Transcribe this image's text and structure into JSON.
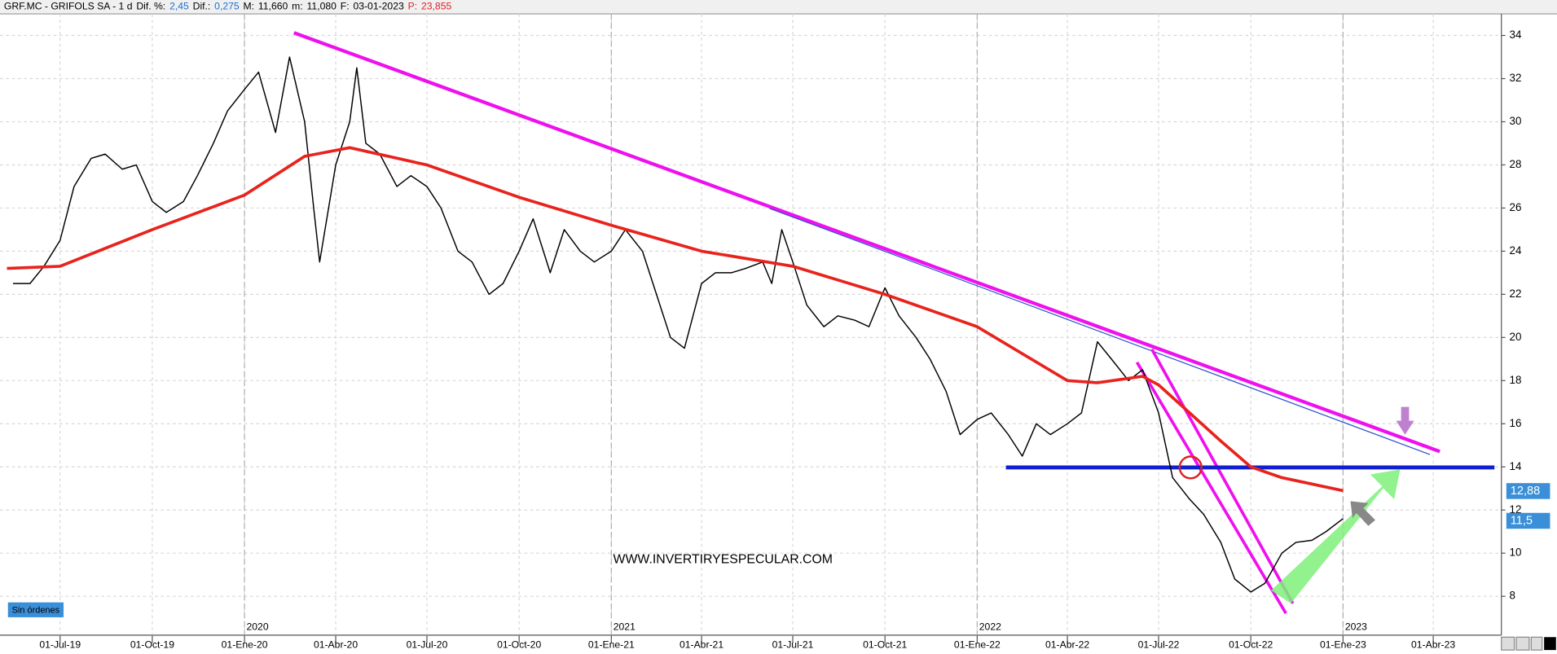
{
  "header": [
    {
      "text": "GRF.MC - GRIFOLS SA -  1 d",
      "color": "#000000"
    },
    {
      "text": "Dif. %:",
      "color": "#000000"
    },
    {
      "text": "2,45",
      "color": "#1f6fd0"
    },
    {
      "text": "Dif.:",
      "color": "#000000"
    },
    {
      "text": "0,275",
      "color": "#1f6fd0"
    },
    {
      "text": "M:",
      "color": "#000000"
    },
    {
      "text": "11,660",
      "color": "#000000"
    },
    {
      "text": "m:",
      "color": "#000000"
    },
    {
      "text": "11,080",
      "color": "#000000"
    },
    {
      "text": "F:",
      "color": "#000000"
    },
    {
      "text": "03-01-2023",
      "color": "#000000"
    },
    {
      "text": "P:",
      "color": "#e0202a"
    },
    {
      "text": "23,855",
      "color": "#e0202a"
    }
  ],
  "watermark": "WWW.INVERTIRYESPECULAR.COM",
  "status": "Sin órdenes",
  "chart_data": {
    "type": "line",
    "xlim": [
      "2019-05-09",
      "2023-06-08"
    ],
    "ylim": [
      6.2,
      35
    ],
    "yticks": [
      8,
      10,
      12,
      14,
      16,
      18,
      20,
      22,
      24,
      26,
      28,
      30,
      32,
      34
    ],
    "xticks": [
      {
        "value": "2019-07-01",
        "label": "01-Jul-19"
      },
      {
        "value": "2019-10-01",
        "label": "01-Oct-19"
      },
      {
        "value": "2020-01-01",
        "label": "01-Ene-20"
      },
      {
        "value": "2020-04-01",
        "label": "01-Abr-20"
      },
      {
        "value": "2020-07-01",
        "label": "01-Jul-20"
      },
      {
        "value": "2020-10-01",
        "label": "01-Oct-20"
      },
      {
        "value": "2021-01-01",
        "label": "01-Ene-21"
      },
      {
        "value": "2021-04-01",
        "label": "01-Abr-21"
      },
      {
        "value": "2021-07-01",
        "label": "01-Jul-21"
      },
      {
        "value": "2021-10-01",
        "label": "01-Oct-21"
      },
      {
        "value": "2022-01-01",
        "label": "01-Ene-22"
      },
      {
        "value": "2022-04-01",
        "label": "01-Abr-22"
      },
      {
        "value": "2022-07-01",
        "label": "01-Jul-22"
      },
      {
        "value": "2022-10-01",
        "label": "01-Oct-22"
      },
      {
        "value": "2023-01-01",
        "label": "01-Ene-23"
      },
      {
        "value": "2023-04-01",
        "label": "01-Abr-23"
      }
    ],
    "year_markers": [
      {
        "value": "2020-01-01",
        "label": "2020"
      },
      {
        "value": "2021-01-01",
        "label": "2021"
      },
      {
        "value": "2022-01-01",
        "label": "2022"
      },
      {
        "value": "2023-01-01",
        "label": "2023"
      }
    ],
    "grid": true,
    "price_labels": [
      {
        "value": 12.88,
        "label": "12,88",
        "color": "#3a8fd8"
      },
      {
        "value": 11.5,
        "label": "11,5",
        "color": "#3a8fd8"
      }
    ],
    "series": [
      {
        "color": "#000000",
        "x": [
          "2019-05-15",
          "2019-06-01",
          "2019-06-15",
          "2019-07-01",
          "2019-07-15",
          "2019-08-01",
          "2019-08-15",
          "2019-09-01",
          "2019-09-15",
          "2019-10-01",
          "2019-10-15",
          "2019-11-01",
          "2019-11-15",
          "2019-12-01",
          "2019-12-15",
          "2020-01-01",
          "2020-01-15",
          "2020-02-01",
          "2020-02-15",
          "2020-03-01",
          "2020-03-10",
          "2020-03-16",
          "2020-04-01",
          "2020-04-15",
          "2020-04-22",
          "2020-05-01",
          "2020-05-15",
          "2020-06-01",
          "2020-06-15",
          "2020-07-01",
          "2020-07-15",
          "2020-08-01",
          "2020-08-15",
          "2020-09-01",
          "2020-09-15",
          "2020-10-01",
          "2020-10-15",
          "2020-11-01",
          "2020-11-15",
          "2020-12-01",
          "2020-12-15",
          "2021-01-01",
          "2021-01-15",
          "2021-02-01",
          "2021-02-15",
          "2021-03-01",
          "2021-03-15",
          "2021-04-01",
          "2021-04-15",
          "2021-05-01",
          "2021-05-15",
          "2021-06-01",
          "2021-06-10",
          "2021-06-20",
          "2021-07-01",
          "2021-07-15",
          "2021-08-01",
          "2021-08-15",
          "2021-09-01",
          "2021-09-15",
          "2021-10-01",
          "2021-10-15",
          "2021-11-01",
          "2021-11-15",
          "2021-12-01",
          "2021-12-15",
          "2022-01-01",
          "2022-01-15",
          "2022-02-01",
          "2022-02-15",
          "2022-03-01",
          "2022-03-15",
          "2022-04-01",
          "2022-04-15",
          "2022-05-01",
          "2022-05-15",
          "2022-06-01",
          "2022-06-15",
          "2022-07-01",
          "2022-07-15",
          "2022-08-01",
          "2022-08-15",
          "2022-09-01",
          "2022-09-15",
          "2022-10-01",
          "2022-10-15",
          "2022-11-01",
          "2022-11-15",
          "2022-12-01",
          "2022-12-15",
          "2023-01-01"
        ],
        "values": [
          22.5,
          22.5,
          23.3,
          24.5,
          27,
          28.3,
          28.5,
          27.8,
          28,
          26.3,
          25.8,
          26.3,
          27.5,
          29,
          30.5,
          31.5,
          32.3,
          29.5,
          33,
          30,
          26,
          23.5,
          28,
          30,
          32.5,
          29,
          28.5,
          27,
          27.5,
          27,
          26,
          24,
          23.5,
          22,
          22.5,
          24,
          25.5,
          23,
          25,
          24,
          23.5,
          24,
          25,
          24,
          22,
          20,
          19.5,
          22.5,
          23,
          23,
          23.2,
          23.5,
          22.5,
          25,
          23.5,
          21.5,
          20.5,
          21,
          20.8,
          20.5,
          22.3,
          21,
          20,
          19,
          17.5,
          15.5,
          16.2,
          16.5,
          15.5,
          14.5,
          16,
          15.5,
          16,
          16.5,
          19.8,
          19,
          18,
          18.5,
          16.5,
          13.5,
          12.5,
          11.8,
          10.5,
          8.8,
          8.2,
          8.6,
          10,
          10.5,
          10.6,
          11,
          11.6
        ]
      },
      {
        "color": "#e8231d",
        "x": [
          "2019-05-09",
          "2019-07-01",
          "2019-10-01",
          "2020-01-01",
          "2020-03-01",
          "2020-04-15",
          "2020-07-01",
          "2020-10-01",
          "2021-01-01",
          "2021-04-01",
          "2021-07-01",
          "2021-10-01",
          "2022-01-01",
          "2022-04-01",
          "2022-05-01",
          "2022-06-15",
          "2022-07-01",
          "2022-08-01",
          "2022-09-01",
          "2022-10-01",
          "2022-11-01",
          "2023-01-01"
        ],
        "values": [
          23.2,
          23.3,
          25,
          26.6,
          28.4,
          28.8,
          28,
          26.5,
          25.2,
          24,
          23.3,
          22,
          20.5,
          18,
          17.9,
          18.2,
          17.8,
          16.5,
          15.2,
          14,
          13.5,
          12.9
        ]
      }
    ]
  }
}
